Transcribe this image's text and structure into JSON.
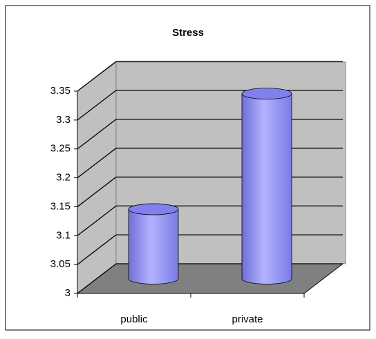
{
  "chart_data": {
    "type": "bar",
    "title": "Stress",
    "categories": [
      "public",
      "private"
    ],
    "values": [
      3.12,
      3.32
    ],
    "color": "#9999ff",
    "ylim": [
      3,
      3.35
    ],
    "yticks": [
      3,
      3.05,
      3.1,
      3.15,
      3.2,
      3.25,
      3.3,
      3.35
    ],
    "grid": true
  }
}
